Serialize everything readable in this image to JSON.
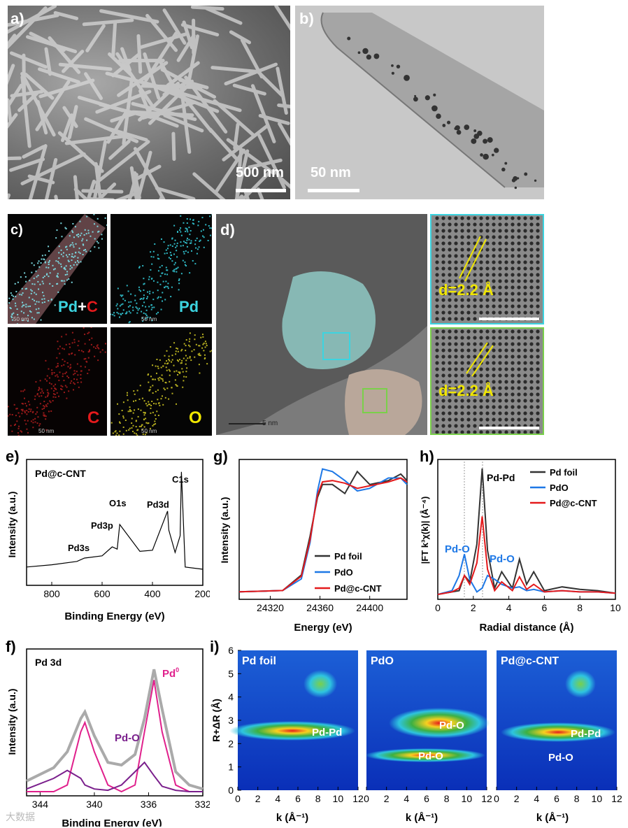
{
  "panels": {
    "a": {
      "label": "a)",
      "scale": "500 nm"
    },
    "b": {
      "label": "b)",
      "scale": "50 nm"
    },
    "c": {
      "label": "c)",
      "maps": [
        "Pd+C",
        "Pd",
        "C",
        "O"
      ],
      "scale_small": "50 nm"
    },
    "d": {
      "label": "d)",
      "scale": "5 nm",
      "inset1": "d=2.2 Å",
      "inset2": "d=2.2 Å"
    },
    "e": {
      "label": "e)",
      "title": "Pd@c-CNT",
      "xlabel": "Binding Energy (eV)",
      "ylabel": "Intensity (a.u.)",
      "peaks": [
        "Pd3s",
        "Pd3p",
        "O1s",
        "Pd3d",
        "C1s"
      ],
      "xticks": [
        "800",
        "600",
        "400",
        "200"
      ]
    },
    "g": {
      "label": "g)",
      "xlabel": "Energy (eV)",
      "ylabel": "Intensity (a.u.)",
      "xticks": [
        "24320",
        "24360",
        "24400"
      ],
      "legend": [
        "Pd foil",
        "PdO",
        "Pd@c-CNT"
      ]
    },
    "h": {
      "label": "h)",
      "xlabel": "Radial distance (Å)",
      "ylabel": "|FT k³χ(k)| (Å⁻⁴)",
      "xticks": [
        "0",
        "2",
        "4",
        "6",
        "8",
        "10"
      ],
      "legend": [
        "Pd foil",
        "PdO",
        "Pd@c-CNT"
      ],
      "annot_pdpd": "Pd-Pd",
      "annot_pdo1": "Pd-O",
      "annot_pdo2": "Pd-O"
    },
    "f": {
      "label": "f)",
      "title": "Pd 3d",
      "xlabel": "Binding Energy (eV)",
      "ylabel": "Intensity (a.u.)",
      "xticks": [
        "344",
        "340",
        "336",
        "332"
      ],
      "annot_pd0": "Pd",
      "annot_pd0_sup": "0",
      "annot_pdo": "Pd-O"
    },
    "i": {
      "label": "i)",
      "ylabel": "R+ΔR (Å)",
      "xlabel": "k (Å⁻¹)",
      "yticks": [
        "0",
        "1",
        "2",
        "3",
        "4",
        "5",
        "6"
      ],
      "xticks": [
        "0",
        "2",
        "4",
        "6",
        "8",
        "10",
        "12"
      ],
      "maps": [
        {
          "title": "Pd foil",
          "labels": [
            "Pd-Pd"
          ]
        },
        {
          "title": "PdO",
          "labels": [
            "Pd-O",
            "Pd-O"
          ]
        },
        {
          "title": "Pd@c-CNT",
          "labels": [
            "Pd-Pd",
            "Pd-O"
          ]
        }
      ]
    }
  },
  "watermark": "大数据",
  "colors": {
    "pd_foil": "#333333",
    "pdo": "#1e78e6",
    "pd_c_cnt": "#e41a1c",
    "cyan": "#3cd4e0",
    "yellow": "#f0e600",
    "magenta": "#e0208c",
    "purple": "#7a1f8c"
  },
  "chart_data": [
    {
      "panel": "e",
      "type": "line",
      "title": "Pd@c-CNT",
      "xlabel": "Binding Energy (eV)",
      "ylabel": "Intensity (a.u.)",
      "xlim": [
        900,
        200
      ],
      "x": [
        900,
        800,
        700,
        670,
        600,
        560,
        540,
        530,
        450,
        400,
        340,
        335,
        310,
        290,
        285,
        270,
        200
      ],
      "series": [
        {
          "values": [
            0.12,
            0.14,
            0.17,
            0.2,
            0.22,
            0.3,
            0.28,
            0.5,
            0.26,
            0.27,
            0.62,
            0.45,
            0.25,
            0.4,
            0.97,
            0.12,
            0.1
          ]
        }
      ]
    },
    {
      "panel": "g",
      "type": "line",
      "xlabel": "Energy (eV)",
      "ylabel": "Intensity (a.u.)",
      "xlim": [
        24295,
        24430
      ],
      "x": [
        24295,
        24330,
        24345,
        24352,
        24358,
        24362,
        24370,
        24380,
        24390,
        24400,
        24415,
        24425,
        24430
      ],
      "series": [
        {
          "name": "Pd foil",
          "values": [
            0.02,
            0.03,
            0.15,
            0.45,
            0.75,
            0.85,
            0.85,
            0.78,
            0.95,
            0.85,
            0.88,
            0.93,
            0.88
          ]
        },
        {
          "name": "PdO",
          "values": [
            0.02,
            0.03,
            0.12,
            0.4,
            0.8,
            0.97,
            0.95,
            0.88,
            0.8,
            0.82,
            0.9,
            0.9,
            0.85
          ]
        },
        {
          "name": "Pd@c-CNT",
          "values": [
            0.02,
            0.03,
            0.14,
            0.42,
            0.77,
            0.87,
            0.88,
            0.86,
            0.82,
            0.84,
            0.87,
            0.9,
            0.87
          ]
        }
      ]
    },
    {
      "panel": "h",
      "type": "line",
      "xlabel": "Radial distance (Å)",
      "ylabel": "|FT k³χ(k)| (Å⁻⁴)",
      "xlim": [
        0,
        10
      ],
      "x": [
        0,
        0.8,
        1.2,
        1.5,
        1.8,
        2.2,
        2.5,
        2.8,
        3.2,
        3.6,
        4.2,
        4.6,
        5.0,
        5.4,
        6.0,
        7.0,
        8.0,
        9.0,
        10.0
      ],
      "series": [
        {
          "name": "Pd foil",
          "values": [
            0.0,
            0.02,
            0.03,
            0.15,
            0.1,
            0.4,
            1.0,
            0.35,
            0.05,
            0.18,
            0.05,
            0.28,
            0.08,
            0.18,
            0.03,
            0.06,
            0.04,
            0.03,
            0.01
          ]
        },
        {
          "name": "PdO",
          "values": [
            0.0,
            0.03,
            0.15,
            0.32,
            0.12,
            0.02,
            0.05,
            0.15,
            0.12,
            0.08,
            0.05,
            0.06,
            0.03,
            0.04,
            0.02,
            0.03,
            0.02,
            0.02,
            0.01
          ]
        },
        {
          "name": "Pd@c-CNT",
          "values": [
            0.0,
            0.02,
            0.05,
            0.15,
            0.08,
            0.25,
            0.62,
            0.2,
            0.03,
            0.1,
            0.03,
            0.14,
            0.04,
            0.08,
            0.02,
            0.03,
            0.02,
            0.02,
            0.01
          ]
        }
      ]
    },
    {
      "panel": "f",
      "type": "line",
      "title": "Pd 3d",
      "xlabel": "Binding Energy (eV)",
      "ylabel": "Intensity (a.u.)",
      "xlim": [
        345,
        332
      ],
      "x": [
        345,
        343,
        342,
        341,
        340.7,
        340,
        339,
        338,
        337,
        336.3,
        335.6,
        335,
        334,
        333,
        332
      ],
      "series": [
        {
          "name": "raw",
          "values": [
            0.08,
            0.18,
            0.3,
            0.55,
            0.6,
            0.42,
            0.22,
            0.2,
            0.28,
            0.55,
            0.92,
            0.62,
            0.15,
            0.05,
            0.02
          ]
        },
        {
          "name": "Pd0",
          "values": [
            0.0,
            0.0,
            0.05,
            0.45,
            0.52,
            0.3,
            0.05,
            0.0,
            0.05,
            0.45,
            0.84,
            0.45,
            0.05,
            0.0,
            0.0
          ]
        },
        {
          "name": "Pd-O",
          "values": [
            0.02,
            0.1,
            0.16,
            0.1,
            0.05,
            0.02,
            0.01,
            0.05,
            0.15,
            0.22,
            0.12,
            0.04,
            0.01,
            0.0,
            0.0
          ]
        }
      ]
    }
  ]
}
